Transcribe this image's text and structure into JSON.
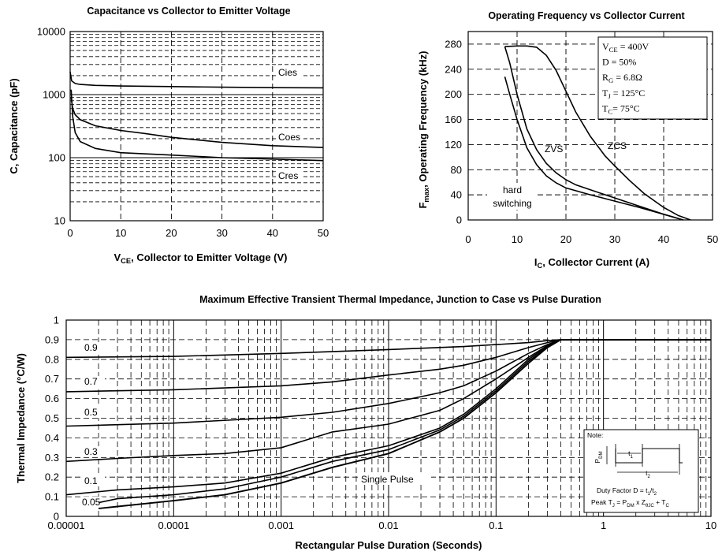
{
  "chart_data": [
    {
      "type": "line",
      "title": "Capacitance vs Collector to Emitter Voltage",
      "xlabel": "V_CE, Collector to Emitter Voltage (V)",
      "xlabel_main": "V",
      "xlabel_sub": "CE",
      "xlabel_rest": ", Collector to Emitter Voltage (V)",
      "ylabel": "C, Capacitance (pF)",
      "xlim": [
        0,
        50
      ],
      "ylim": [
        10,
        10000
      ],
      "yscale": "log",
      "xticks": [
        0,
        10,
        20,
        30,
        40,
        50
      ],
      "yticks": [
        "10",
        "100",
        "1000",
        "10000"
      ],
      "grid": true,
      "series": [
        {
          "name": "Cies",
          "x": [
            0,
            0.3,
            1,
            2,
            5,
            10,
            20,
            30,
            40,
            50
          ],
          "y": [
            2300,
            1650,
            1500,
            1450,
            1400,
            1370,
            1340,
            1310,
            1290,
            1280
          ]
        },
        {
          "name": "Coes",
          "x": [
            0.2,
            0.5,
            1,
            2,
            5,
            10,
            15,
            20,
            30,
            40,
            50
          ],
          "y": [
            900,
            600,
            480,
            400,
            320,
            270,
            240,
            210,
            175,
            155,
            145
          ]
        },
        {
          "name": "Cres",
          "x": [
            0.2,
            0.5,
            1,
            2,
            5,
            10,
            20,
            30,
            40,
            50
          ],
          "y": [
            1200,
            450,
            250,
            180,
            140,
            120,
            110,
            100,
            95,
            90
          ]
        }
      ]
    },
    {
      "type": "line",
      "title": "Operating Frequency vs Collector Current",
      "xlabel": "I_C, Collector Current (A)",
      "xlabel_main": "I",
      "xlabel_sub": "C",
      "xlabel_rest": ", Collector Current (A)",
      "ylabel": "F_max, Operating Frequency (kHz)",
      "ylabel_main": "F",
      "ylabel_sub": "max",
      "ylabel_rest": ", Operating Frequency (kHz)",
      "xlim": [
        0,
        50
      ],
      "ylim": [
        0,
        300
      ],
      "xticks": [
        0,
        10,
        20,
        30,
        40,
        50
      ],
      "yticks": [
        0,
        40,
        80,
        120,
        160,
        200,
        240,
        280
      ],
      "grid": true,
      "conditions": [
        {
          "main": "V",
          "sub": "CE",
          "rest": " = 400V"
        },
        {
          "main": "D = 50%",
          "sub": "",
          "rest": ""
        },
        {
          "main": "R",
          "sub": "G",
          "rest": " = 6.8Ω"
        },
        {
          "main": "T",
          "sub": "J",
          "rest": " = 125°C"
        },
        {
          "main": "T",
          "sub": "C",
          "rest": "= 75°C"
        }
      ],
      "series": [
        {
          "name": "ZCS",
          "x": [
            7.5,
            10,
            12,
            14,
            16,
            18,
            20,
            22,
            25,
            28,
            30,
            33,
            36,
            40,
            43,
            45.5
          ],
          "y": [
            276,
            277,
            277,
            275,
            262,
            238,
            205,
            172,
            133,
            102,
            86,
            63,
            42,
            20,
            7,
            0
          ]
        },
        {
          "name": "ZVS",
          "x": [
            7.5,
            8.5,
            10,
            12,
            14,
            16,
            18,
            20,
            22,
            25,
            30,
            35,
            40,
            44
          ],
          "y": [
            276,
            250,
            200,
            145,
            112,
            90,
            75,
            64,
            56,
            48,
            35,
            22,
            9,
            0
          ]
        },
        {
          "name": "hard switching",
          "x": [
            7.5,
            8.5,
            10,
            12,
            14,
            16,
            18,
            20,
            25,
            30,
            35,
            40,
            44
          ],
          "y": [
            228,
            200,
            160,
            115,
            88,
            70,
            59,
            51,
            40,
            30,
            20,
            9,
            0
          ]
        }
      ],
      "labels": {
        "zvs": "ZVS",
        "zcs": "ZCS",
        "hard1": "hard",
        "hard2": "switching"
      }
    },
    {
      "type": "line",
      "title": "Maximum Effective Transient Thermal Impedance, Junction to Case vs Pulse Duration",
      "xlabel": "Rectangular Pulse Duration (Seconds)",
      "ylabel": "Thermal Impedance (°C/W)",
      "xscale": "log",
      "xlim": [
        1e-05,
        10
      ],
      "ylim": [
        0,
        1
      ],
      "xticks": [
        "0.00001",
        "0.0001",
        "0.001",
        "0.01",
        "0.1",
        "1",
        "10"
      ],
      "yticks": [
        "0",
        "0.1",
        "0.2",
        "0.3",
        "0.4",
        "0.5",
        "0.6",
        "0.7",
        "0.8",
        "0.9",
        "1"
      ],
      "grid": true,
      "series": [
        {
          "name": "0.9",
          "x": [
            1e-05,
            0.0001,
            0.001,
            0.01,
            0.05,
            0.1,
            0.2,
            0.3,
            0.4,
            1,
            10
          ],
          "y": [
            0.81,
            0.815,
            0.83,
            0.85,
            0.865,
            0.875,
            0.885,
            0.895,
            0.9,
            0.9,
            0.9
          ]
        },
        {
          "name": "0.7",
          "x": [
            1e-05,
            0.0001,
            0.001,
            0.003,
            0.01,
            0.03,
            0.05,
            0.1,
            0.2,
            0.3,
            0.4,
            1,
            10
          ],
          "y": [
            0.635,
            0.645,
            0.665,
            0.685,
            0.72,
            0.75,
            0.77,
            0.81,
            0.86,
            0.885,
            0.9,
            0.9,
            0.9
          ]
        },
        {
          "name": "0.5",
          "x": [
            1e-05,
            0.0001,
            0.001,
            0.003,
            0.01,
            0.03,
            0.05,
            0.1,
            0.2,
            0.3,
            0.4,
            1,
            10
          ],
          "y": [
            0.46,
            0.475,
            0.505,
            0.53,
            0.575,
            0.63,
            0.665,
            0.74,
            0.83,
            0.875,
            0.9,
            0.9,
            0.9
          ]
        },
        {
          "name": "0.3",
          "x": [
            1e-05,
            3e-05,
            0.0001,
            0.0003,
            0.001,
            0.003,
            0.01,
            0.03,
            0.05,
            0.1,
            0.2,
            0.3,
            0.4,
            1,
            10
          ],
          "y": [
            0.28,
            0.295,
            0.31,
            0.32,
            0.35,
            0.43,
            0.47,
            0.54,
            0.6,
            0.7,
            0.81,
            0.87,
            0.9,
            0.9,
            0.9
          ]
        },
        {
          "name": "0.1",
          "x": [
            1e-05,
            3e-05,
            0.0001,
            0.0003,
            0.001,
            0.003,
            0.01,
            0.03,
            0.05,
            0.1,
            0.2,
            0.3,
            0.4,
            1,
            10
          ],
          "y": [
            0.11,
            0.135,
            0.15,
            0.17,
            0.22,
            0.3,
            0.36,
            0.45,
            0.52,
            0.65,
            0.8,
            0.865,
            0.9,
            0.9,
            0.9
          ]
        },
        {
          "name": "0.05",
          "x": [
            2e-05,
            3e-05,
            0.0001,
            0.0003,
            0.001,
            0.003,
            0.01,
            0.03,
            0.05,
            0.1,
            0.2,
            0.3,
            0.4,
            1,
            10
          ],
          "y": [
            0.07,
            0.09,
            0.11,
            0.14,
            0.2,
            0.28,
            0.34,
            0.44,
            0.51,
            0.64,
            0.79,
            0.86,
            0.9,
            0.9,
            0.9
          ]
        },
        {
          "name": "Single Pulse",
          "x": [
            2e-05,
            3e-05,
            0.0001,
            0.0003,
            0.001,
            0.003,
            0.01,
            0.03,
            0.05,
            0.1,
            0.2,
            0.3,
            0.4,
            1,
            10
          ],
          "y": [
            0.04,
            0.05,
            0.08,
            0.11,
            0.17,
            0.25,
            0.32,
            0.43,
            0.5,
            0.63,
            0.78,
            0.86,
            0.9,
            0.9,
            0.9
          ]
        }
      ],
      "single_pulse_label": "Single Pulse",
      "note": {
        "title": "Note:",
        "pdm": "P",
        "pdm_sub": "DM",
        "t1": "t",
        "t1_sub": "1",
        "t2": "t",
        "t2_sub": "2",
        "duty_text": "Duty Factor  D = ",
        "duty_frac_top": "t",
        "duty_frac_top_sub": "1",
        "duty_frac_bot": "t",
        "duty_frac_bot_sub": "2",
        "peak_text": "Peak T",
        "peak_j": "J",
        "peak_mid": " = P",
        "peak_dm": "DM",
        "peak_x": " x Z",
        "peak_z": "θJC",
        "peak_plus": " + T",
        "peak_c": "C"
      }
    }
  ]
}
